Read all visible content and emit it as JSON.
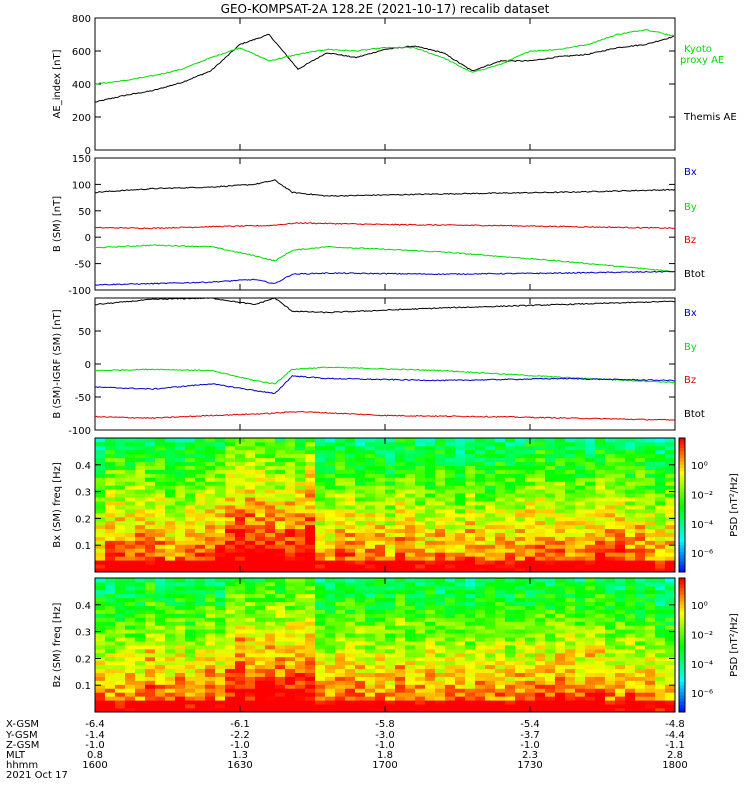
{
  "title": "GEO-KOMPSAT-2A 128.2E (2021-10-17) recalib dataset",
  "colors": {
    "black": "#000000",
    "green": "#00dd00",
    "red": "#dd0000",
    "blue": "#0000cc"
  },
  "chart_data": [
    {
      "type": "line",
      "ylabel": "AE_index [nT]",
      "ylim": [
        0,
        800
      ],
      "yticks": [
        0,
        200,
        400,
        600,
        800
      ],
      "xlim": [
        1600,
        1800
      ],
      "xtick_labels": [
        "1600",
        "1630",
        "1700",
        "1730",
        "1800"
      ],
      "series": [
        {
          "name": "Themis AE",
          "color": "#000000",
          "x": [
            0,
            10,
            20,
            30,
            40,
            50,
            60,
            70,
            80,
            90,
            100,
            110,
            120,
            130,
            140,
            150,
            160,
            170,
            180,
            190,
            200
          ],
          "values": [
            290,
            330,
            360,
            410,
            480,
            640,
            700,
            490,
            590,
            560,
            610,
            630,
            590,
            480,
            540,
            540,
            565,
            580,
            620,
            640,
            690
          ]
        },
        {
          "name": "Kyoto proxy AE",
          "color": "#00dd00",
          "x": [
            0,
            10,
            20,
            30,
            40,
            50,
            60,
            70,
            80,
            90,
            100,
            110,
            120,
            130,
            140,
            150,
            160,
            170,
            180,
            190,
            200
          ],
          "values": [
            400,
            420,
            450,
            490,
            560,
            620,
            540,
            580,
            610,
            600,
            620,
            620,
            560,
            470,
            520,
            600,
            610,
            640,
            700,
            730,
            690
          ]
        }
      ]
    },
    {
      "type": "line",
      "ylabel": "B (SM) [nT]",
      "ylim": [
        -100,
        150
      ],
      "yticks": [
        -100,
        -50,
        0,
        50,
        100,
        150
      ],
      "xlim": [
        1600,
        1800
      ],
      "xtick_labels": [
        "1600",
        "1630",
        "1700",
        "1730",
        "1800"
      ],
      "legend": [
        "Bx",
        "By",
        "Bz",
        "Btot"
      ],
      "series": [
        {
          "name": "Btot",
          "color": "#000000",
          "x": [
            0,
            20,
            40,
            55,
            62,
            68,
            80,
            120,
            160,
            200
          ],
          "values": [
            85,
            92,
            95,
            100,
            108,
            85,
            78,
            82,
            85,
            90
          ]
        },
        {
          "name": "Bz",
          "color": "#dd0000",
          "x": [
            0,
            20,
            40,
            60,
            70,
            100,
            140,
            200
          ],
          "values": [
            18,
            17,
            20,
            22,
            27,
            24,
            22,
            17
          ]
        },
        {
          "name": "By",
          "color": "#00dd00",
          "x": [
            0,
            20,
            40,
            55,
            62,
            68,
            80,
            120,
            160,
            200
          ],
          "values": [
            -20,
            -15,
            -18,
            -35,
            -45,
            -25,
            -18,
            -28,
            -45,
            -65
          ]
        },
        {
          "name": "Bx",
          "color": "#0000cc",
          "x": [
            0,
            20,
            40,
            55,
            62,
            68,
            80,
            120,
            160,
            200
          ],
          "values": [
            -90,
            -88,
            -85,
            -80,
            -88,
            -70,
            -68,
            -70,
            -68,
            -65
          ]
        }
      ]
    },
    {
      "type": "line",
      "ylabel": "B (SM)-IGRF (SM) [nT]",
      "ylim": [
        -100,
        100
      ],
      "yticks": [
        -100,
        -50,
        0,
        50
      ],
      "xlim": [
        1600,
        1800
      ],
      "xtick_labels": [
        "1600",
        "1630",
        "1700",
        "1730",
        "1800"
      ],
      "legend": [
        "Bx",
        "By",
        "Bz",
        "Btot"
      ],
      "series": [
        {
          "name": "Btot",
          "color": "#000000",
          "x": [
            0,
            20,
            40,
            55,
            62,
            68,
            80,
            120,
            160,
            200
          ],
          "values": [
            90,
            98,
            100,
            90,
            100,
            80,
            78,
            85,
            90,
            95
          ]
        },
        {
          "name": "By",
          "color": "#00dd00",
          "x": [
            0,
            20,
            40,
            55,
            62,
            68,
            80,
            120,
            160,
            200
          ],
          "values": [
            -10,
            -8,
            -10,
            -25,
            -30,
            -8,
            -5,
            -10,
            -20,
            -28
          ]
        },
        {
          "name": "Bx",
          "color": "#0000cc",
          "x": [
            0,
            20,
            40,
            55,
            62,
            68,
            80,
            120,
            160,
            200
          ],
          "values": [
            -35,
            -38,
            -30,
            -40,
            -45,
            -18,
            -22,
            -25,
            -22,
            -25
          ]
        },
        {
          "name": "Bz",
          "color": "#dd0000",
          "x": [
            0,
            20,
            40,
            60,
            70,
            100,
            140,
            200
          ],
          "values": [
            -80,
            -82,
            -78,
            -75,
            -72,
            -78,
            -80,
            -85
          ]
        }
      ]
    },
    {
      "type": "heatmap",
      "ylabel": "Bx (SM) freq [Hz]",
      "ylim": [
        0,
        0.5
      ],
      "yticks": [
        0.1,
        0.2,
        0.3,
        0.4
      ],
      "xlim": [
        1600,
        1800
      ],
      "colorbar_label": "PSD [nT²/Hz]",
      "colorbar_ticks": [
        "10⁰",
        "10⁻²",
        "10⁻⁴",
        "10⁻⁶"
      ]
    },
    {
      "type": "heatmap",
      "ylabel": "Bz (SM) freq [Hz]",
      "ylim": [
        0,
        0.5
      ],
      "yticks": [
        0.1,
        0.2,
        0.3,
        0.4
      ],
      "xlim": [
        1600,
        1800
      ],
      "colorbar_label": "PSD [nT²/Hz]",
      "colorbar_ticks": [
        "10⁰",
        "10⁻²",
        "10⁻⁴",
        "10⁻⁶"
      ]
    }
  ],
  "legend_labels": {
    "kyoto": "Kyoto",
    "proxy_ae": "proxy AE",
    "themis_ae": "Themis AE",
    "bx": "Bx",
    "by": "By",
    "bz": "Bz",
    "btot": "Btot"
  },
  "footer": {
    "row_labels": [
      "X-GSM",
      "Y-GSM",
      "Z-GSM",
      "MLT",
      "hhmm",
      "2021 Oct 17"
    ],
    "columns": [
      {
        "xgsm": "-6.4",
        "ygsm": "-1.4",
        "zgsm": "-1.0",
        "mlt": "0.8",
        "hhmm": "1600"
      },
      {
        "xgsm": "-6.1",
        "ygsm": "-2.2",
        "zgsm": "-1.0",
        "mlt": "1.3",
        "hhmm": "1630"
      },
      {
        "xgsm": "-5.8",
        "ygsm": "-3.0",
        "zgsm": "-1.0",
        "mlt": "1.8",
        "hhmm": "1700"
      },
      {
        "xgsm": "-5.4",
        "ygsm": "-3.7",
        "zgsm": "-1.0",
        "mlt": "2.3",
        "hhmm": "1730"
      },
      {
        "xgsm": "-4.8",
        "ygsm": "-4.4",
        "zgsm": "-1.1",
        "mlt": "2.8",
        "hhmm": "1800"
      }
    ]
  }
}
